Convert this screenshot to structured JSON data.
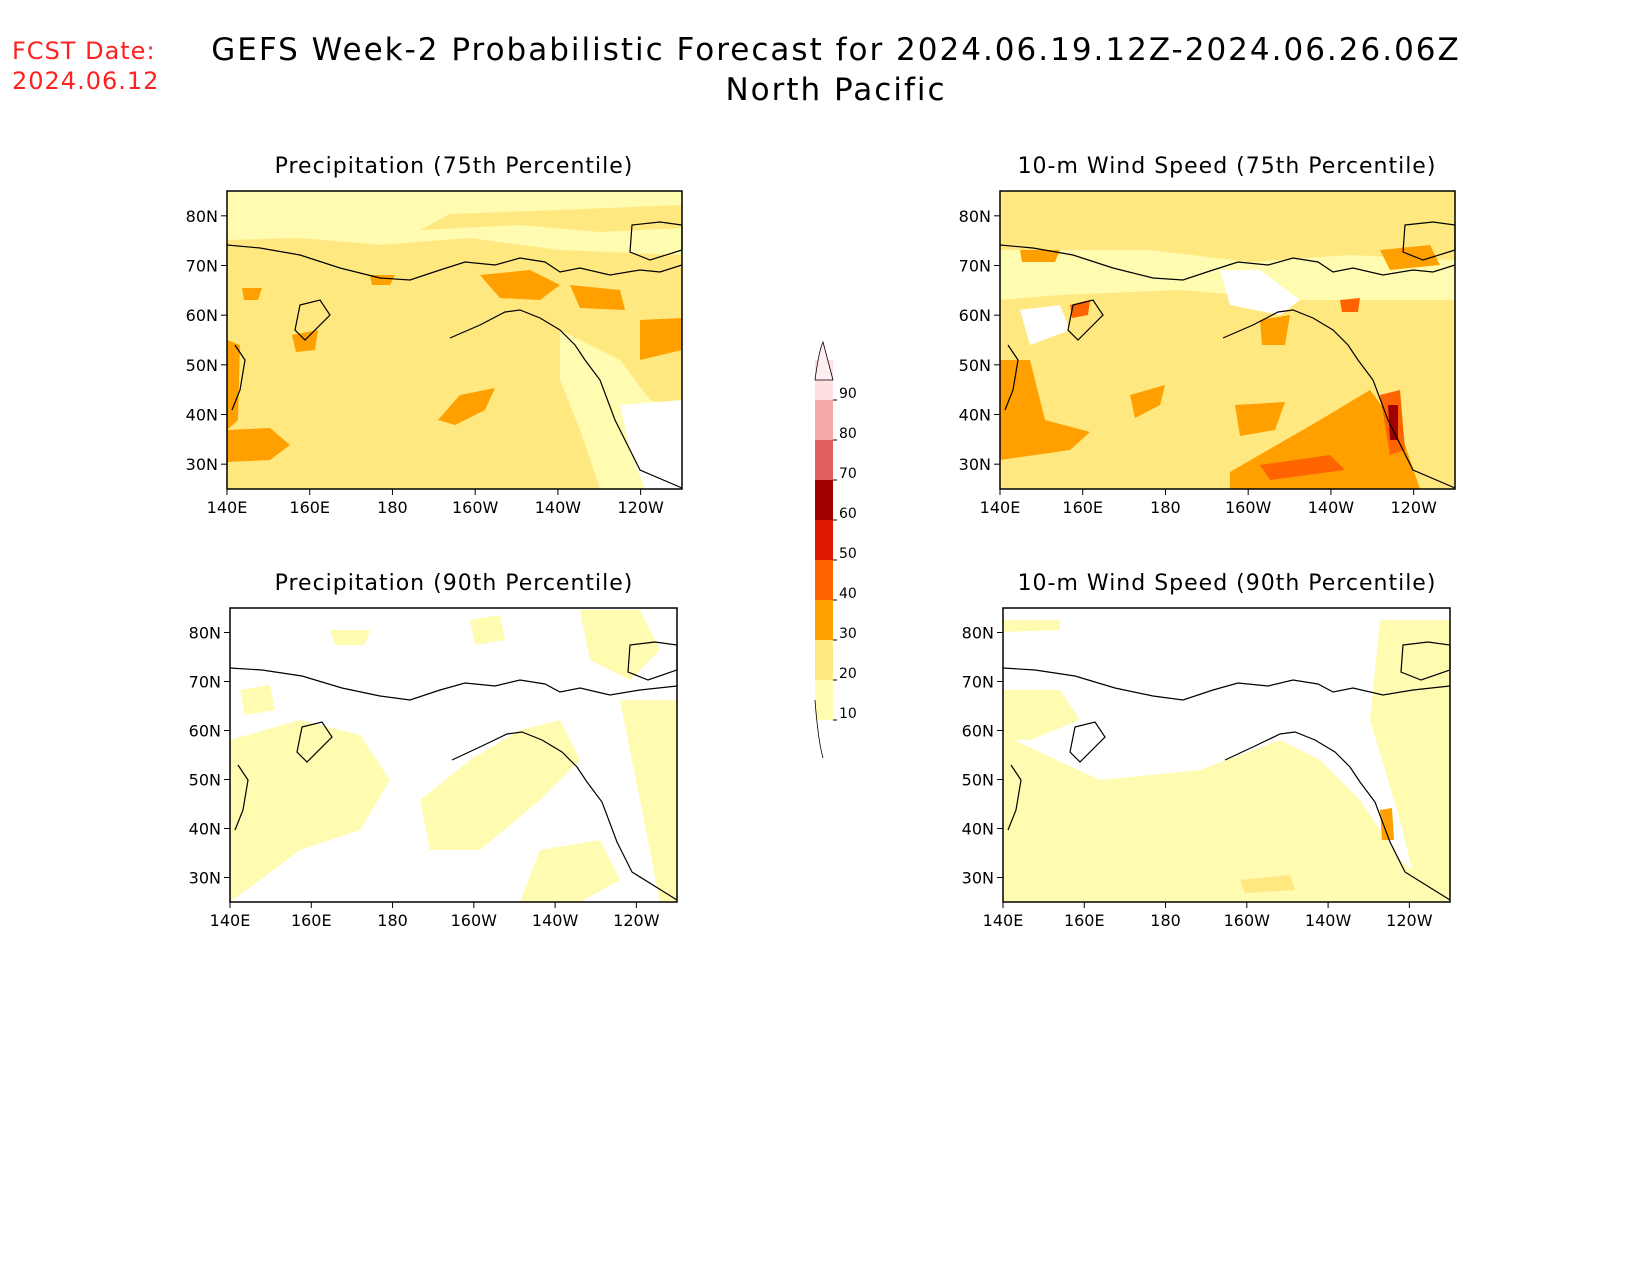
{
  "header": {
    "fcst_label_line1": "FCST Date:",
    "fcst_label_line2": "2024.06.12",
    "title_line1": "GEFS Week-2 Probabilistic Forecast for 2024.06.19.12Z-2024.06.26.06Z",
    "title_line2": "North Pacific"
  },
  "lat_labels": [
    "80N",
    "70N",
    "60N",
    "50N",
    "40N",
    "30N"
  ],
  "lon_labels": [
    "140E",
    "160E",
    "180",
    "160W",
    "140W",
    "120W"
  ],
  "panels": [
    {
      "id": "precip-75",
      "title": "Precipitation (75th Percentile)",
      "intensity": "high"
    },
    {
      "id": "wind-75",
      "title": "10-m Wind Speed (75th Percentile)",
      "intensity": "high"
    },
    {
      "id": "precip-90",
      "title": "Precipitation (90th Percentile)",
      "intensity": "low"
    },
    {
      "id": "wind-90",
      "title": "10-m Wind Speed (90th Percentile)",
      "intensity": "low"
    }
  ],
  "colorbar": {
    "labels": [
      "10",
      "20",
      "30",
      "40",
      "50",
      "60",
      "70",
      "80",
      "90"
    ],
    "colors": [
      "#fffbb0",
      "#ffe880",
      "#ffa000",
      "#ff6400",
      "#e01800",
      "#a00000",
      "#e06060",
      "#f4a8a8",
      "#ffe0e0"
    ]
  },
  "colors": {
    "c10": "#fffbb0",
    "c20": "#ffe880",
    "c30": "#ffa000",
    "c40": "#ff6400",
    "c50": "#e01800",
    "c60": "#a00000",
    "fcst": "#ff2020"
  }
}
